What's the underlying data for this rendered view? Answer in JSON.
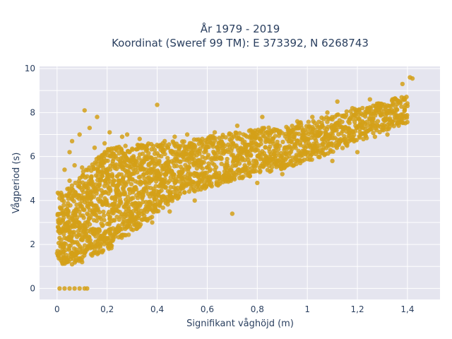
{
  "chart_data": {
    "type": "scatter",
    "title_line1": "År 1979 - 2019",
    "title_line2": "Koordinat (Sweref 99 TM): E 373392, N 6268743",
    "xlabel": "Signifikant våghöjd (m)",
    "ylabel": "Vågperiod (s)",
    "xlim": [
      -0.07,
      1.53
    ],
    "ylim": [
      -0.5,
      10.1
    ],
    "x_ticks": [
      0,
      0.2,
      0.4,
      0.6,
      0.8,
      1,
      1.2,
      1.4
    ],
    "x_tick_labels": [
      "0",
      "0,2",
      "0,4",
      "0,6",
      "0,8",
      "1",
      "1,2",
      "1,4"
    ],
    "y_ticks": [
      0,
      2,
      4,
      6,
      8,
      10
    ],
    "y_tick_labels": [
      "0",
      "2",
      "4",
      "6",
      "8",
      "10"
    ],
    "grid": true,
    "colors": {
      "marker": "#D4A017",
      "plot_bg": "#E5E5EF",
      "grid": "#ffffff",
      "text": "#2a3f5f"
    },
    "series": [
      {
        "points": [
          [
            0.01,
            0
          ],
          [
            0.03,
            0
          ],
          [
            0.05,
            0
          ],
          [
            0.07,
            0
          ],
          [
            0.09,
            0
          ],
          [
            0.11,
            0
          ],
          [
            0.12,
            0
          ],
          [
            0.0,
            1.6
          ],
          [
            0.01,
            4.1
          ],
          [
            0.02,
            4.2
          ],
          [
            0.02,
            2.7
          ],
          [
            0.03,
            5.4
          ],
          [
            0.03,
            2.3
          ],
          [
            0.04,
            1.2
          ],
          [
            0.04,
            3.6
          ],
          [
            0.05,
            6.2
          ],
          [
            0.05,
            4.9
          ],
          [
            0.06,
            1.1
          ],
          [
            0.06,
            6.7
          ],
          [
            0.07,
            5.6
          ],
          [
            0.08,
            2.1
          ],
          [
            0.09,
            7.0
          ],
          [
            0.1,
            1.2
          ],
          [
            0.1,
            5.5
          ],
          [
            0.11,
            8.1
          ],
          [
            0.12,
            3.4
          ],
          [
            0.13,
            7.3
          ],
          [
            0.14,
            1.5
          ],
          [
            0.15,
            6.4
          ],
          [
            0.16,
            7.8
          ],
          [
            0.17,
            4.7
          ],
          [
            0.18,
            2.4
          ],
          [
            0.19,
            6.6
          ],
          [
            0.2,
            5.2
          ],
          [
            0.21,
            7.1
          ],
          [
            0.22,
            3.6
          ],
          [
            0.23,
            6.0
          ],
          [
            0.24,
            5.1
          ],
          [
            0.25,
            2.7
          ],
          [
            0.26,
            6.9
          ],
          [
            0.27,
            4.3
          ],
          [
            0.28,
            7.0
          ],
          [
            0.3,
            3.2
          ],
          [
            0.31,
            5.6
          ],
          [
            0.33,
            6.8
          ],
          [
            0.34,
            4.1
          ],
          [
            0.36,
            6.5
          ],
          [
            0.38,
            3.0
          ],
          [
            0.4,
            8.35
          ],
          [
            0.41,
            4.4
          ],
          [
            0.43,
            6.7
          ],
          [
            0.45,
            3.5
          ],
          [
            0.47,
            6.9
          ],
          [
            0.5,
            4.7
          ],
          [
            0.52,
            7.0
          ],
          [
            0.55,
            4.0
          ],
          [
            0.58,
            6.8
          ],
          [
            0.6,
            5.5
          ],
          [
            0.63,
            7.1
          ],
          [
            0.65,
            4.9
          ],
          [
            0.67,
            6.2
          ],
          [
            0.7,
            3.4
          ],
          [
            0.72,
            7.4
          ],
          [
            0.75,
            5.6
          ],
          [
            0.78,
            6.3
          ],
          [
            0.8,
            4.8
          ],
          [
            0.82,
            7.8
          ],
          [
            0.85,
            6.0
          ],
          [
            0.88,
            7.2
          ],
          [
            0.9,
            5.2
          ],
          [
            0.93,
            6.9
          ],
          [
            0.96,
            7.6
          ],
          [
            1.0,
            6.2
          ],
          [
            1.02,
            7.8
          ],
          [
            1.05,
            6.5
          ],
          [
            1.08,
            8.0
          ],
          [
            1.1,
            5.8
          ],
          [
            1.12,
            8.5
          ],
          [
            1.15,
            6.8
          ],
          [
            1.18,
            8.2
          ],
          [
            1.2,
            6.2
          ],
          [
            1.22,
            7.6
          ],
          [
            1.25,
            8.6
          ],
          [
            1.27,
            6.9
          ],
          [
            1.3,
            8.3
          ],
          [
            1.32,
            7.0
          ],
          [
            1.34,
            8.6
          ],
          [
            1.36,
            7.5
          ],
          [
            1.38,
            9.3
          ],
          [
            1.4,
            8.3
          ],
          [
            1.41,
            9.6
          ],
          [
            1.42,
            9.55
          ]
        ]
      }
    ]
  }
}
